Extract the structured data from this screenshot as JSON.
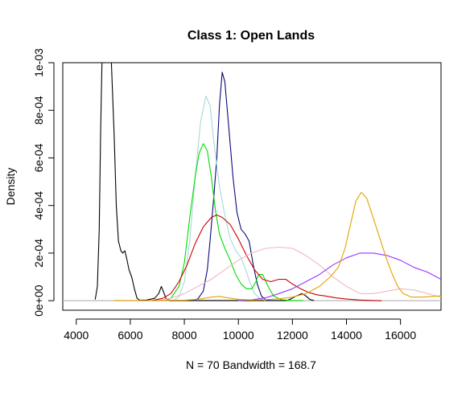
{
  "chart_data": {
    "type": "line",
    "title": "Class 1: Open Lands",
    "xlabel": "N = 70   Bandwidth = 168.7",
    "ylabel": "Density",
    "xlim": [
      3500,
      17500
    ],
    "ylim": [
      -4e-05,
      0.001
    ],
    "x_ticks": [
      4000,
      6000,
      8000,
      10000,
      12000,
      14000,
      16000
    ],
    "x_tick_labels": [
      "4000",
      "6000",
      "8000",
      "10000",
      "12000",
      "14000",
      "16000"
    ],
    "y_ticks": [
      0,
      0.0002,
      0.0004,
      0.0006,
      0.0008,
      0.001
    ],
    "y_tick_labels": [
      "0e+00",
      "2e-04",
      "4e-04",
      "6e-04",
      "8e-04",
      "1e-03"
    ],
    "grid": false,
    "legend": "none",
    "baseline_color": "#b8b8b8",
    "series": [
      {
        "color": "#000000",
        "points": [
          [
            4700,
            5e-06
          ],
          [
            4780,
            6e-05
          ],
          [
            4850,
            0.0003
          ],
          [
            4900,
            0.0007
          ],
          [
            4950,
            0.001
          ],
          [
            5200,
            0.001
          ],
          [
            5300,
            0.001
          ],
          [
            5400,
            0.0007
          ],
          [
            5480,
            0.0004
          ],
          [
            5560,
            0.00025
          ],
          [
            5650,
            0.00021
          ],
          [
            5720,
            0.0002
          ],
          [
            5800,
            0.00021
          ],
          [
            5880,
            0.00017
          ],
          [
            5950,
            0.00013
          ],
          [
            6050,
            0.0001
          ],
          [
            6150,
            5e-05
          ],
          [
            6250,
            1e-05
          ],
          [
            6350,
            2e-06
          ],
          [
            6600,
            3e-06
          ],
          [
            6900,
            1e-05
          ],
          [
            7050,
            3e-05
          ],
          [
            7150,
            6e-05
          ],
          [
            7220,
            4e-05
          ],
          [
            7320,
            1e-05
          ],
          [
            7450,
            1e-06
          ],
          [
            11800,
            1e-06
          ],
          [
            11950,
            8e-06
          ],
          [
            12150,
            2e-05
          ],
          [
            12350,
            3e-05
          ],
          [
            12500,
            2e-05
          ],
          [
            12650,
            5e-06
          ],
          [
            12800,
            1e-06
          ]
        ]
      },
      {
        "color": "#0a0a7a",
        "points": [
          [
            8300,
            1e-06
          ],
          [
            8500,
            8e-06
          ],
          [
            8700,
            4e-05
          ],
          [
            8850,
            0.00013
          ],
          [
            8950,
            0.00025
          ],
          [
            9100,
            0.00045
          ],
          [
            9200,
            0.0006
          ],
          [
            9300,
            0.00082
          ],
          [
            9400,
            0.00096
          ],
          [
            9500,
            0.00092
          ],
          [
            9650,
            0.00072
          ],
          [
            9800,
            0.00052
          ],
          [
            9950,
            0.00037
          ],
          [
            10100,
            0.0003
          ],
          [
            10250,
            0.00028
          ],
          [
            10400,
            0.00025
          ],
          [
            10550,
            0.00015
          ],
          [
            10700,
            7e-05
          ],
          [
            10850,
            2e-05
          ],
          [
            11000,
            4e-06
          ],
          [
            11200,
            1e-06
          ]
        ]
      },
      {
        "color": "#a8d8d8",
        "points": [
          [
            7600,
            1e-06
          ],
          [
            7800,
            1.5e-05
          ],
          [
            8000,
            8e-05
          ],
          [
            8200,
            0.00025
          ],
          [
            8400,
            0.00052
          ],
          [
            8600,
            0.00075
          ],
          [
            8800,
            0.00086
          ],
          [
            8950,
            0.00082
          ],
          [
            9100,
            0.00066
          ],
          [
            9300,
            0.00048
          ],
          [
            9500,
            0.00036
          ],
          [
            9700,
            0.00026
          ],
          [
            9900,
            0.00021
          ],
          [
            10100,
            0.00018
          ],
          [
            10300,
            0.00012
          ],
          [
            10450,
            7e-05
          ],
          [
            10600,
            3e-05
          ],
          [
            10800,
            8e-06
          ],
          [
            11000,
            1e-06
          ]
        ]
      },
      {
        "color": "#00dd00",
        "points": [
          [
            7300,
            1e-06
          ],
          [
            7500,
            1e-05
          ],
          [
            7800,
            6e-05
          ],
          [
            8000,
            0.00016
          ],
          [
            8200,
            0.00035
          ],
          [
            8400,
            0.00052
          ],
          [
            8550,
            0.00062
          ],
          [
            8700,
            0.00066
          ],
          [
            8850,
            0.00063
          ],
          [
            9000,
            0.00052
          ],
          [
            9150,
            0.00038
          ],
          [
            9300,
            0.00028
          ],
          [
            9500,
            0.00022
          ],
          [
            9700,
            0.00017
          ],
          [
            9900,
            0.00011
          ],
          [
            10100,
            7e-05
          ],
          [
            10300,
            5e-05
          ],
          [
            10500,
            5e-05
          ],
          [
            10650,
            8e-05
          ],
          [
            10750,
            0.00011
          ],
          [
            10900,
            0.00011
          ],
          [
            11100,
            6e-05
          ],
          [
            11300,
            2e-05
          ],
          [
            11600,
            4e-06
          ],
          [
            12000,
            1e-06
          ],
          [
            12400,
            1e-06
          ]
        ]
      },
      {
        "color": "#cc0000",
        "points": [
          [
            6800,
            1e-06
          ],
          [
            7200,
            1e-05
          ],
          [
            7500,
            3e-05
          ],
          [
            7800,
            8e-05
          ],
          [
            8100,
            0.00015
          ],
          [
            8400,
            0.00024
          ],
          [
            8700,
            0.00031
          ],
          [
            9000,
            0.00035
          ],
          [
            9200,
            0.00036
          ],
          [
            9400,
            0.00035
          ],
          [
            9700,
            0.00032
          ],
          [
            10000,
            0.00026
          ],
          [
            10300,
            0.00019
          ],
          [
            10600,
            0.00013
          ],
          [
            10900,
            9e-05
          ],
          [
            11200,
            8e-05
          ],
          [
            11500,
            9e-05
          ],
          [
            11750,
            9e-05
          ],
          [
            12000,
            7e-05
          ],
          [
            12300,
            5e-05
          ],
          [
            12600,
            3.5e-05
          ],
          [
            12900,
            2.5e-05
          ],
          [
            13200,
            2e-05
          ],
          [
            13600,
            1.2e-05
          ],
          [
            14000,
            7e-06
          ],
          [
            14500,
            3e-06
          ],
          [
            15000,
            1e-06
          ],
          [
            15300,
            0.0
          ]
        ]
      },
      {
        "color": "#f4b6c2",
        "points": [
          [
            7000,
            1e-06
          ],
          [
            7500,
            1e-05
          ],
          [
            8000,
            3e-05
          ],
          [
            8500,
            6e-05
          ],
          [
            9000,
            9e-05
          ],
          [
            9500,
            0.00013
          ],
          [
            10000,
            0.00017
          ],
          [
            10500,
            0.0002
          ],
          [
            11000,
            0.00022
          ],
          [
            11500,
            0.000225
          ],
          [
            12000,
            0.00022
          ],
          [
            12500,
            0.00019
          ],
          [
            13000,
            0.00015
          ],
          [
            13500,
            0.0001
          ],
          [
            14000,
            6e-05
          ],
          [
            14500,
            3e-05
          ],
          [
            15000,
            3e-05
          ],
          [
            15500,
            4e-05
          ],
          [
            16000,
            5e-05
          ],
          [
            16500,
            4.5e-05
          ],
          [
            17000,
            3e-05
          ],
          [
            17500,
            1.5e-05
          ]
        ]
      },
      {
        "color": "#9933ff",
        "points": [
          [
            10000,
            1e-06
          ],
          [
            10500,
            4e-06
          ],
          [
            11000,
            1.2e-05
          ],
          [
            11500,
            3e-05
          ],
          [
            12000,
            5e-05
          ],
          [
            12500,
            8e-05
          ],
          [
            13000,
            0.00011
          ],
          [
            13500,
            0.00015
          ],
          [
            14000,
            0.00018
          ],
          [
            14500,
            0.0002
          ],
          [
            15000,
            0.0002
          ],
          [
            15500,
            0.00019
          ],
          [
            16000,
            0.00017
          ],
          [
            16500,
            0.00014
          ],
          [
            17000,
            0.00012
          ],
          [
            17500,
            9e-05
          ]
        ]
      },
      {
        "color": "#e6a100",
        "points": [
          [
            5400,
            1e-06
          ],
          [
            6000,
            1e-06
          ],
          [
            6500,
            1e-06
          ],
          [
            7000,
            1e-06
          ],
          [
            7500,
            2e-06
          ],
          [
            8000,
            2e-06
          ],
          [
            8500,
            6e-06
          ],
          [
            9000,
            1.5e-05
          ],
          [
            9300,
            1.8e-05
          ],
          [
            9600,
            1.2e-05
          ],
          [
            10000,
            6e-06
          ],
          [
            10500,
            3e-06
          ],
          [
            11000,
            4e-06
          ],
          [
            11500,
            8e-06
          ],
          [
            12000,
            1.5e-05
          ],
          [
            12500,
            3e-05
          ],
          [
            13000,
            6e-05
          ],
          [
            13400,
            0.0001
          ],
          [
            13700,
            0.00014
          ],
          [
            13950,
            0.00022
          ],
          [
            14150,
            0.00032
          ],
          [
            14350,
            0.00042
          ],
          [
            14550,
            0.000455
          ],
          [
            14750,
            0.00043
          ],
          [
            14900,
            0.00038
          ],
          [
            15100,
            0.00031
          ],
          [
            15300,
            0.00024
          ],
          [
            15500,
            0.00017
          ],
          [
            15700,
            0.00011
          ],
          [
            15900,
            6e-05
          ],
          [
            16100,
            3e-05
          ],
          [
            16400,
            1.5e-05
          ],
          [
            16800,
            1.5e-05
          ],
          [
            17200,
            1.8e-05
          ],
          [
            17500,
            2e-05
          ]
        ]
      }
    ]
  }
}
